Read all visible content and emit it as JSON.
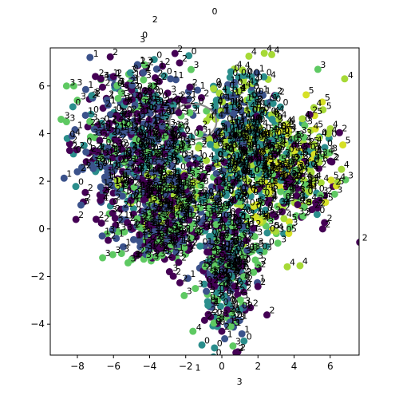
{
  "chart_data": {
    "type": "scatter",
    "title": "",
    "xlabel": "",
    "ylabel": "",
    "xlim": [
      -9.5,
      7.6
    ],
    "ylim": [
      -5.3,
      7.6
    ],
    "x_ticks": [
      -8,
      -6,
      -4,
      -2,
      0,
      2,
      4,
      6
    ],
    "y_ticks": [
      -4,
      -2,
      0,
      2,
      4,
      6
    ],
    "x_tick_labels": [
      "−8",
      "−6",
      "−4",
      "−2",
      "0",
      "2",
      "4",
      "6"
    ],
    "y_tick_labels": [
      "−4",
      "−2",
      "0",
      "2",
      "4",
      "6"
    ],
    "grid": false,
    "colormap": "viridis",
    "class_colors": {
      "0": "#2b8e8c",
      "1": "#3b528b",
      "2": "#440154",
      "3": "#5ec962",
      "4": "#a6d936",
      "5": "#d6e026"
    },
    "annotation_ring": {
      "center": [
        -1.6,
        4.5
      ],
      "rx": 1.3,
      "ry": 0.75,
      "color": "#8c8c8c"
    },
    "labeled_points": [
      {
        "x": -7.3,
        "y": 7.2,
        "label": "1",
        "cls": "1"
      },
      {
        "x": 0.5,
        "y": 6.6,
        "label": "0",
        "cls": "0"
      },
      {
        "x": 6.8,
        "y": 6.3,
        "label": "4",
        "cls": "4"
      },
      {
        "x": -8.6,
        "y": 6.0,
        "label": "3",
        "cls": "3"
      },
      {
        "x": -8.2,
        "y": 6.0,
        "label": "3",
        "cls": "3"
      },
      {
        "x": -7.0,
        "y": 6.4,
        "label": "2",
        "cls": "2"
      },
      {
        "x": -6.7,
        "y": 6.3,
        "label": "4",
        "cls": "2"
      },
      {
        "x": -6.0,
        "y": 6.4,
        "label": "2",
        "cls": "2"
      },
      {
        "x": -8.0,
        "y": 5.4,
        "label": "3",
        "cls": "3"
      },
      {
        "x": -7.2,
        "y": 5.6,
        "label": "3",
        "cls": "0"
      },
      {
        "x": -8.9,
        "y": 4.6,
        "label": "3",
        "cls": "3"
      },
      {
        "x": -8.6,
        "y": 4.5,
        "label": "3",
        "cls": "3"
      },
      {
        "x": -8.3,
        "y": 3.9,
        "label": "4",
        "cls": "1"
      },
      {
        "x": -8.0,
        "y": 2.4,
        "label": "2",
        "cls": "1"
      },
      {
        "x": -7.7,
        "y": 2.5,
        "label": "2",
        "cls": "1"
      },
      {
        "x": -7.8,
        "y": 1.0,
        "label": "5",
        "cls": "1"
      },
      {
        "x": -5.0,
        "y": -1.3,
        "label": "3",
        "cls": "3"
      },
      {
        "x": -3.6,
        "y": -1.2,
        "label": "3",
        "cls": "3"
      },
      {
        "x": -2.9,
        "y": -1.8,
        "label": "3",
        "cls": "2"
      },
      {
        "x": 2.0,
        "y": -1.5,
        "label": "2",
        "cls": "3"
      },
      {
        "x": 1.4,
        "y": -0.9,
        "label": "1",
        "cls": "1"
      },
      {
        "x": 3.1,
        "y": -0.6,
        "label": "3",
        "cls": "3"
      },
      {
        "x": 5.4,
        "y": 1.2,
        "label": "4",
        "cls": "2"
      },
      {
        "x": 5.6,
        "y": 5.0,
        "label": "5",
        "cls": "4"
      },
      {
        "x": 5.9,
        "y": 4.0,
        "label": "4",
        "cls": "4"
      },
      {
        "x": 5.8,
        "y": 3.2,
        "label": "3",
        "cls": "3"
      },
      {
        "x": 5.4,
        "y": 2.8,
        "label": "6",
        "cls": "4"
      },
      {
        "x": 0.3,
        "y": -3.4,
        "label": "3",
        "cls": "2"
      },
      {
        "x": -1.6,
        "y": -4.3,
        "label": "4",
        "cls": "3"
      },
      {
        "x": 0.5,
        "y": -4.1,
        "label": "3",
        "cls": "3"
      },
      {
        "x": 3.0,
        "y": 5.6,
        "label": "2",
        "cls": "0"
      },
      {
        "x": 1.8,
        "y": 5.3,
        "label": "0",
        "cls": "0"
      },
      {
        "x": -0.3,
        "y": 5.4,
        "label": "0",
        "cls": "0"
      },
      {
        "x": -1.3,
        "y": 3.4,
        "label": "2",
        "cls": "4"
      },
      {
        "x": -0.2,
        "y": 3.2,
        "label": "0",
        "cls": "0"
      },
      {
        "x": -3.0,
        "y": 5.7,
        "label": "3",
        "cls": "2"
      },
      {
        "x": -4.0,
        "y": 4.3,
        "label": "4",
        "cls": "1"
      }
    ],
    "clusters": [
      {
        "cx": -4.6,
        "cy": 3.6,
        "sx": 1.7,
        "sy": 1.6,
        "n": 520,
        "classes": [
          "1",
          "2",
          "3",
          "0",
          "1",
          "2"
        ]
      },
      {
        "cx": -3.1,
        "cy": 1.3,
        "sx": 1.5,
        "sy": 0.6,
        "n": 220,
        "classes": [
          "1",
          "2",
          "3",
          "4"
        ]
      },
      {
        "cx": 1.1,
        "cy": 3.6,
        "sx": 0.9,
        "sy": 1.5,
        "n": 330,
        "classes": [
          "0",
          "0",
          "1",
          "4"
        ]
      },
      {
        "cx": 3.5,
        "cy": 2.4,
        "sx": 1.3,
        "sy": 1.3,
        "n": 320,
        "classes": [
          "4",
          "5",
          "2",
          "0",
          "3"
        ]
      },
      {
        "cx": 0.2,
        "cy": -1.3,
        "sx": 0.8,
        "sy": 1.7,
        "n": 320,
        "classes": [
          "2",
          "3",
          "1",
          "0"
        ]
      },
      {
        "cx": -3.5,
        "cy": -0.4,
        "sx": 1.1,
        "sy": 0.6,
        "n": 140,
        "classes": [
          "3",
          "2",
          "1"
        ]
      }
    ],
    "label_density_note": ""
  }
}
